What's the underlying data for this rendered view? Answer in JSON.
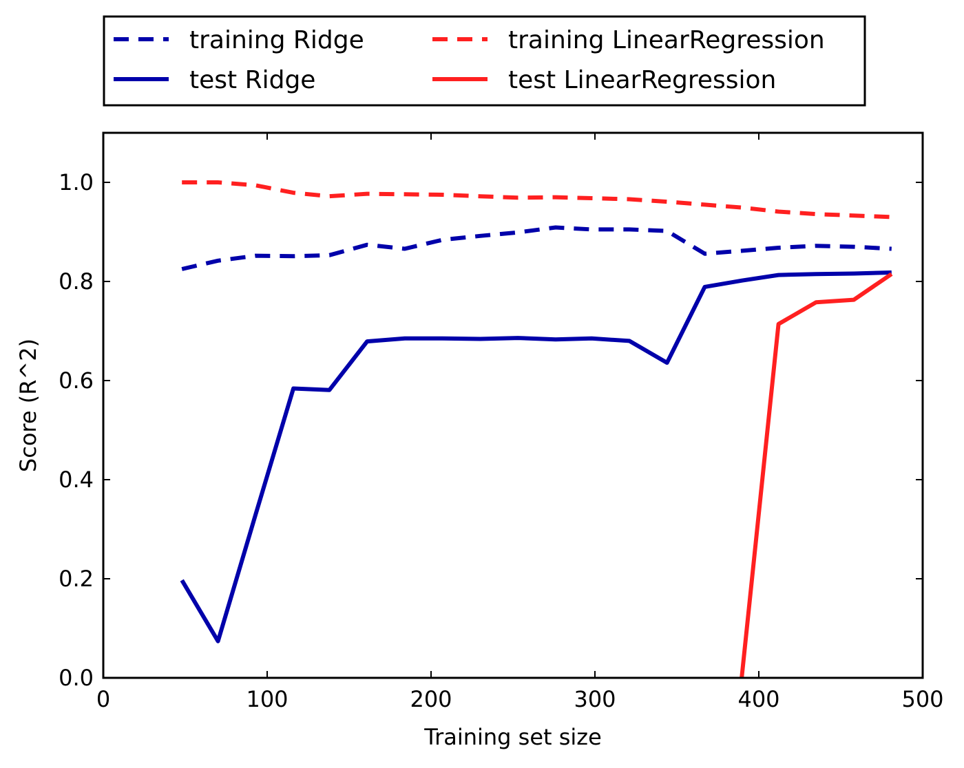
{
  "chart_data": {
    "type": "line",
    "title": "",
    "xlabel": "Training set size",
    "ylabel": "Score (R^2)",
    "xlim": [
      0,
      500
    ],
    "ylim": [
      0.0,
      1.1
    ],
    "xticks": [
      0,
      100,
      200,
      300,
      400,
      500
    ],
    "xtick_labels": [
      "0",
      "100",
      "200",
      "300",
      "400",
      "500"
    ],
    "yticks": [
      0.0,
      0.2,
      0.4,
      0.6,
      0.8,
      1.0
    ],
    "ytick_labels": [
      "0.0",
      "0.2",
      "0.4",
      "0.6",
      "0.8",
      "1.0"
    ],
    "grid": false,
    "legend_position": "top, above plot, two columns",
    "series": [
      {
        "name": "training Ridge",
        "color": "#0000aa",
        "style": "dashed",
        "x": [
          48,
          70,
          93,
          116,
          138,
          161,
          184,
          207,
          230,
          253,
          276,
          298,
          321,
          344,
          367,
          390,
          412,
          435,
          458,
          481
        ],
        "y": [
          0.825,
          0.842,
          0.852,
          0.851,
          0.853,
          0.874,
          0.866,
          0.884,
          0.892,
          0.899,
          0.909,
          0.905,
          0.905,
          0.902,
          0.856,
          0.862,
          0.868,
          0.872,
          0.87,
          0.866
        ]
      },
      {
        "name": "test Ridge",
        "color": "#0000aa",
        "style": "solid",
        "x": [
          48,
          70,
          93,
          116,
          138,
          161,
          184,
          207,
          230,
          253,
          276,
          298,
          321,
          344,
          367,
          390,
          412,
          435,
          458,
          481
        ],
        "y": [
          0.197,
          0.074,
          0.33,
          0.584,
          0.581,
          0.679,
          0.685,
          0.685,
          0.684,
          0.686,
          0.683,
          0.685,
          0.68,
          0.636,
          0.789,
          0.802,
          0.813,
          0.815,
          0.816,
          0.818
        ]
      },
      {
        "name": "training LinearRegression",
        "color": "#ff2020",
        "style": "dashed",
        "x": [
          48,
          70,
          93,
          116,
          138,
          161,
          184,
          207,
          230,
          253,
          276,
          298,
          321,
          344,
          367,
          390,
          412,
          435,
          458,
          481
        ],
        "y": [
          1.0,
          1.0,
          0.994,
          0.979,
          0.972,
          0.977,
          0.976,
          0.975,
          0.972,
          0.969,
          0.97,
          0.968,
          0.966,
          0.961,
          0.955,
          0.949,
          0.941,
          0.936,
          0.933,
          0.93
        ]
      },
      {
        "name": "test LinearRegression",
        "color": "#ff2020",
        "style": "solid",
        "x": [
          388,
          412,
          435,
          458,
          481
        ],
        "y": [
          -0.05,
          0.714,
          0.758,
          0.763,
          0.815
        ]
      }
    ]
  }
}
